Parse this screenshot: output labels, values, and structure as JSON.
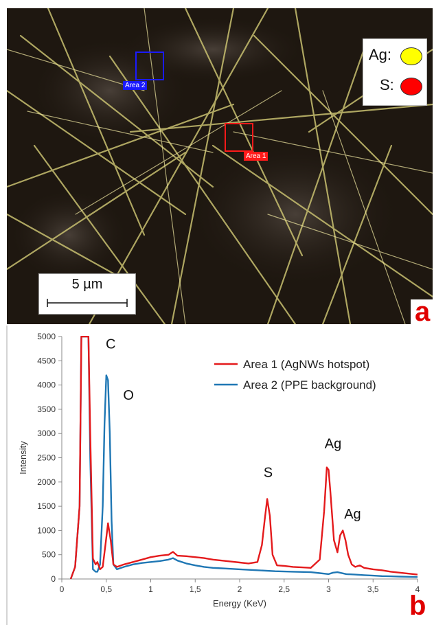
{
  "panel_a": {
    "legend": [
      {
        "label": "Ag:",
        "color": "#ffff00"
      },
      {
        "label": "S:",
        "color": "#ff0000"
      }
    ],
    "area_labels": {
      "area1": "Area 1",
      "area2": "Area 2"
    },
    "scale_bar_label": "5 µm",
    "panel_letter": "a",
    "colors": {
      "area1": "#ff0000",
      "area2": "#0000ff",
      "panel_letter": "#e00000"
    }
  },
  "panel_b": {
    "panel_letter": "b"
  },
  "chart_data": {
    "type": "line",
    "title": "",
    "xlabel": "Energy (KeV)",
    "ylabel": "Intensity",
    "xlim": [
      0,
      4
    ],
    "ylim": [
      0,
      5000
    ],
    "x_ticks": [
      "0",
      "0,5",
      "1",
      "1,5",
      "2",
      "2,5",
      "3",
      "3,5",
      "4"
    ],
    "y_ticks": [
      "0",
      "500",
      "1000",
      "1500",
      "2000",
      "2500",
      "3000",
      "3500",
      "4000",
      "4500",
      "5000"
    ],
    "grid": false,
    "legend_position": "top-right",
    "annotations": [
      {
        "text": "C",
        "x": 0.55,
        "y": 4750
      },
      {
        "text": "O",
        "x": 0.75,
        "y": 3700
      },
      {
        "text": "S",
        "x": 2.32,
        "y": 2100
      },
      {
        "text": "Ag",
        "x": 3.05,
        "y": 2700
      },
      {
        "text": "Ag",
        "x": 3.27,
        "y": 1250
      }
    ],
    "series": [
      {
        "name": "Area 1 (AgNWs hotspot)",
        "color": "#e41a1c",
        "x": [
          0.1,
          0.15,
          0.2,
          0.22,
          0.24,
          0.26,
          0.28,
          0.3,
          0.32,
          0.35,
          0.38,
          0.4,
          0.43,
          0.46,
          0.49,
          0.52,
          0.55,
          0.58,
          0.62,
          0.7,
          0.8,
          0.9,
          1.0,
          1.1,
          1.2,
          1.25,
          1.3,
          1.4,
          1.5,
          1.6,
          1.7,
          1.8,
          1.9,
          2.0,
          2.1,
          2.2,
          2.25,
          2.28,
          2.31,
          2.34,
          2.37,
          2.42,
          2.5,
          2.6,
          2.7,
          2.8,
          2.9,
          2.95,
          2.98,
          3.0,
          3.02,
          3.06,
          3.1,
          3.13,
          3.16,
          3.19,
          3.22,
          3.26,
          3.3,
          3.35,
          3.4,
          3.5,
          3.6,
          3.7,
          3.8,
          3.9,
          4.0
        ],
        "values": [
          0,
          250,
          1500,
          5000,
          5000,
          5000,
          5000,
          5000,
          3000,
          420,
          300,
          350,
          200,
          250,
          700,
          1150,
          800,
          300,
          250,
          300,
          350,
          400,
          450,
          480,
          500,
          560,
          480,
          470,
          450,
          430,
          400,
          380,
          360,
          340,
          320,
          350,
          700,
          1200,
          1650,
          1300,
          500,
          280,
          270,
          250,
          240,
          230,
          400,
          1400,
          2300,
          2250,
          1800,
          800,
          550,
          900,
          1000,
          800,
          500,
          300,
          250,
          280,
          230,
          200,
          180,
          150,
          130,
          110,
          90
        ]
      },
      {
        "name": "Area 2 (PPE background)",
        "color": "#1f77b4",
        "x": [
          0.1,
          0.15,
          0.2,
          0.22,
          0.24,
          0.26,
          0.28,
          0.3,
          0.32,
          0.35,
          0.38,
          0.4,
          0.43,
          0.46,
          0.48,
          0.5,
          0.52,
          0.54,
          0.56,
          0.58,
          0.62,
          0.7,
          0.8,
          0.9,
          1.0,
          1.1,
          1.2,
          1.25,
          1.3,
          1.4,
          1.5,
          1.6,
          1.7,
          1.8,
          1.9,
          2.0,
          2.2,
          2.4,
          2.6,
          2.8,
          2.9,
          2.95,
          3.0,
          3.05,
          3.1,
          3.2,
          3.3,
          3.4,
          3.5,
          3.6,
          3.7,
          3.8,
          3.9,
          4.0
        ],
        "values": [
          0,
          250,
          1500,
          5000,
          5000,
          5000,
          5000,
          5000,
          2500,
          200,
          150,
          150,
          300,
          1500,
          3200,
          4200,
          4100,
          3000,
          1200,
          300,
          200,
          250,
          300,
          330,
          350,
          370,
          400,
          430,
          380,
          320,
          280,
          250,
          230,
          220,
          210,
          200,
          180,
          160,
          150,
          140,
          120,
          110,
          100,
          130,
          140,
          100,
          90,
          80,
          70,
          60,
          55,
          50,
          45,
          40
        ]
      }
    ]
  }
}
